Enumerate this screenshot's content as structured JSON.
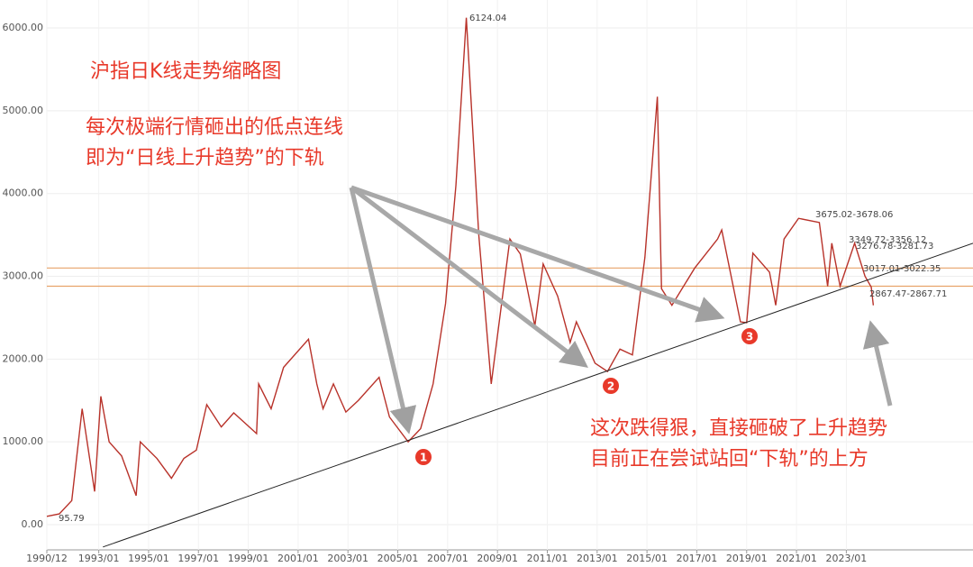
{
  "chart_data": {
    "type": "line",
    "title": "沪指日K线走势缩略图",
    "annotations": [
      "每次极端行情砸出的低点连线",
      "即为“日线上升趋势”的下轨",
      "这次跌得狠，直接砸破了上升趋势",
      "目前正在尝试站回“下轨”的上方"
    ],
    "markers": [
      "1",
      "2",
      "3"
    ],
    "price_labels": [
      "6124.04",
      "95.79",
      "3675.02-3678.06",
      "3349.72-3356.12",
      "3276.78-3281.73",
      "3017.01-3022.35",
      "2867.47-2867.71"
    ],
    "x": [
      "1990/12",
      "1991/06",
      "1991/12",
      "1992/05",
      "1992/11",
      "1993/02",
      "1993/06",
      "1993/12",
      "1994/07",
      "1994/09",
      "1995/05",
      "1995/12",
      "1996/06",
      "1996/12",
      "1997/05",
      "1997/12",
      "1998/06",
      "1999/05",
      "1999/06",
      "1999/12",
      "2000/06",
      "2001/06",
      "2001/10",
      "2002/01",
      "2002/06",
      "2002/12",
      "2003/06",
      "2004/04",
      "2004/09",
      "2005/06",
      "2005/12",
      "2006/06",
      "2006/12",
      "2007/05",
      "2007/10",
      "2008/04",
      "2008/10",
      "2009/07",
      "2009/12",
      "2010/07",
      "2010/11",
      "2011/06",
      "2011/12",
      "2012/03",
      "2012/12",
      "2013/06",
      "2013/12",
      "2014/06",
      "2014/12",
      "2015/06",
      "2015/08",
      "2016/01",
      "2016/12",
      "2017/11",
      "2018/01",
      "2018/10",
      "2019/01",
      "2019/04",
      "2019/12",
      "2020/03",
      "2020/07",
      "2021/02",
      "2021/12",
      "2022/04",
      "2022/06",
      "2022/10",
      "2023/05",
      "2023/10",
      "2024/01",
      "2024/02"
    ],
    "series": [
      {
        "name": "沪指",
        "color": "#b8322a",
        "values": [
          100,
          130,
          290,
          1400,
          400,
          1550,
          1000,
          830,
          350,
          1000,
          800,
          560,
          800,
          900,
          1450,
          1180,
          1350,
          1100,
          1700,
          1400,
          1900,
          2240,
          1700,
          1400,
          1700,
          1360,
          1500,
          1780,
          1300,
          1000,
          1160,
          1700,
          2670,
          4100,
          6124,
          3500,
          1700,
          3450,
          3270,
          2400,
          3150,
          2760,
          2200,
          2450,
          1950,
          1850,
          2120,
          2050,
          3230,
          5170,
          2850,
          2650,
          3100,
          3450,
          3560,
          2450,
          2440,
          3280,
          3050,
          2650,
          3450,
          3700,
          3650,
          2880,
          3400,
          2880,
          3400,
          3000,
          2870,
          2650
        ]
      }
    ],
    "trend_line": {
      "x": [
        "1993/03",
        "2028/02"
      ],
      "values": [
        -270,
        3400
      ],
      "color": "#222222"
    },
    "ref_lines": {
      "values": [
        3100,
        2880
      ],
      "color": "#e8a36a"
    },
    "xlim": [
      "1990/12",
      "2028/02"
    ],
    "xticks": [
      "1990/12",
      "1993/01",
      "1995/01",
      "1997/01",
      "1999/01",
      "2001/01",
      "2003/01",
      "2005/01",
      "2007/01",
      "2009/01",
      "2011/01",
      "2013/01",
      "2015/01",
      "2017/01",
      "2019/01",
      "2021/01",
      "2023/01"
    ],
    "ylim": [
      -305,
      6338
    ],
    "yticks": [
      {
        "value": 0,
        "label": "0.00"
      },
      {
        "value": 1000,
        "label": "1000.00"
      },
      {
        "value": 2000,
        "label": "2000.00"
      },
      {
        "value": 3000,
        "label": "3000.00"
      },
      {
        "value": 4000,
        "label": "4000.00"
      },
      {
        "value": 5000,
        "label": "5000.00"
      },
      {
        "value": 6000,
        "label": "6000.00"
      }
    ],
    "grid": true
  }
}
